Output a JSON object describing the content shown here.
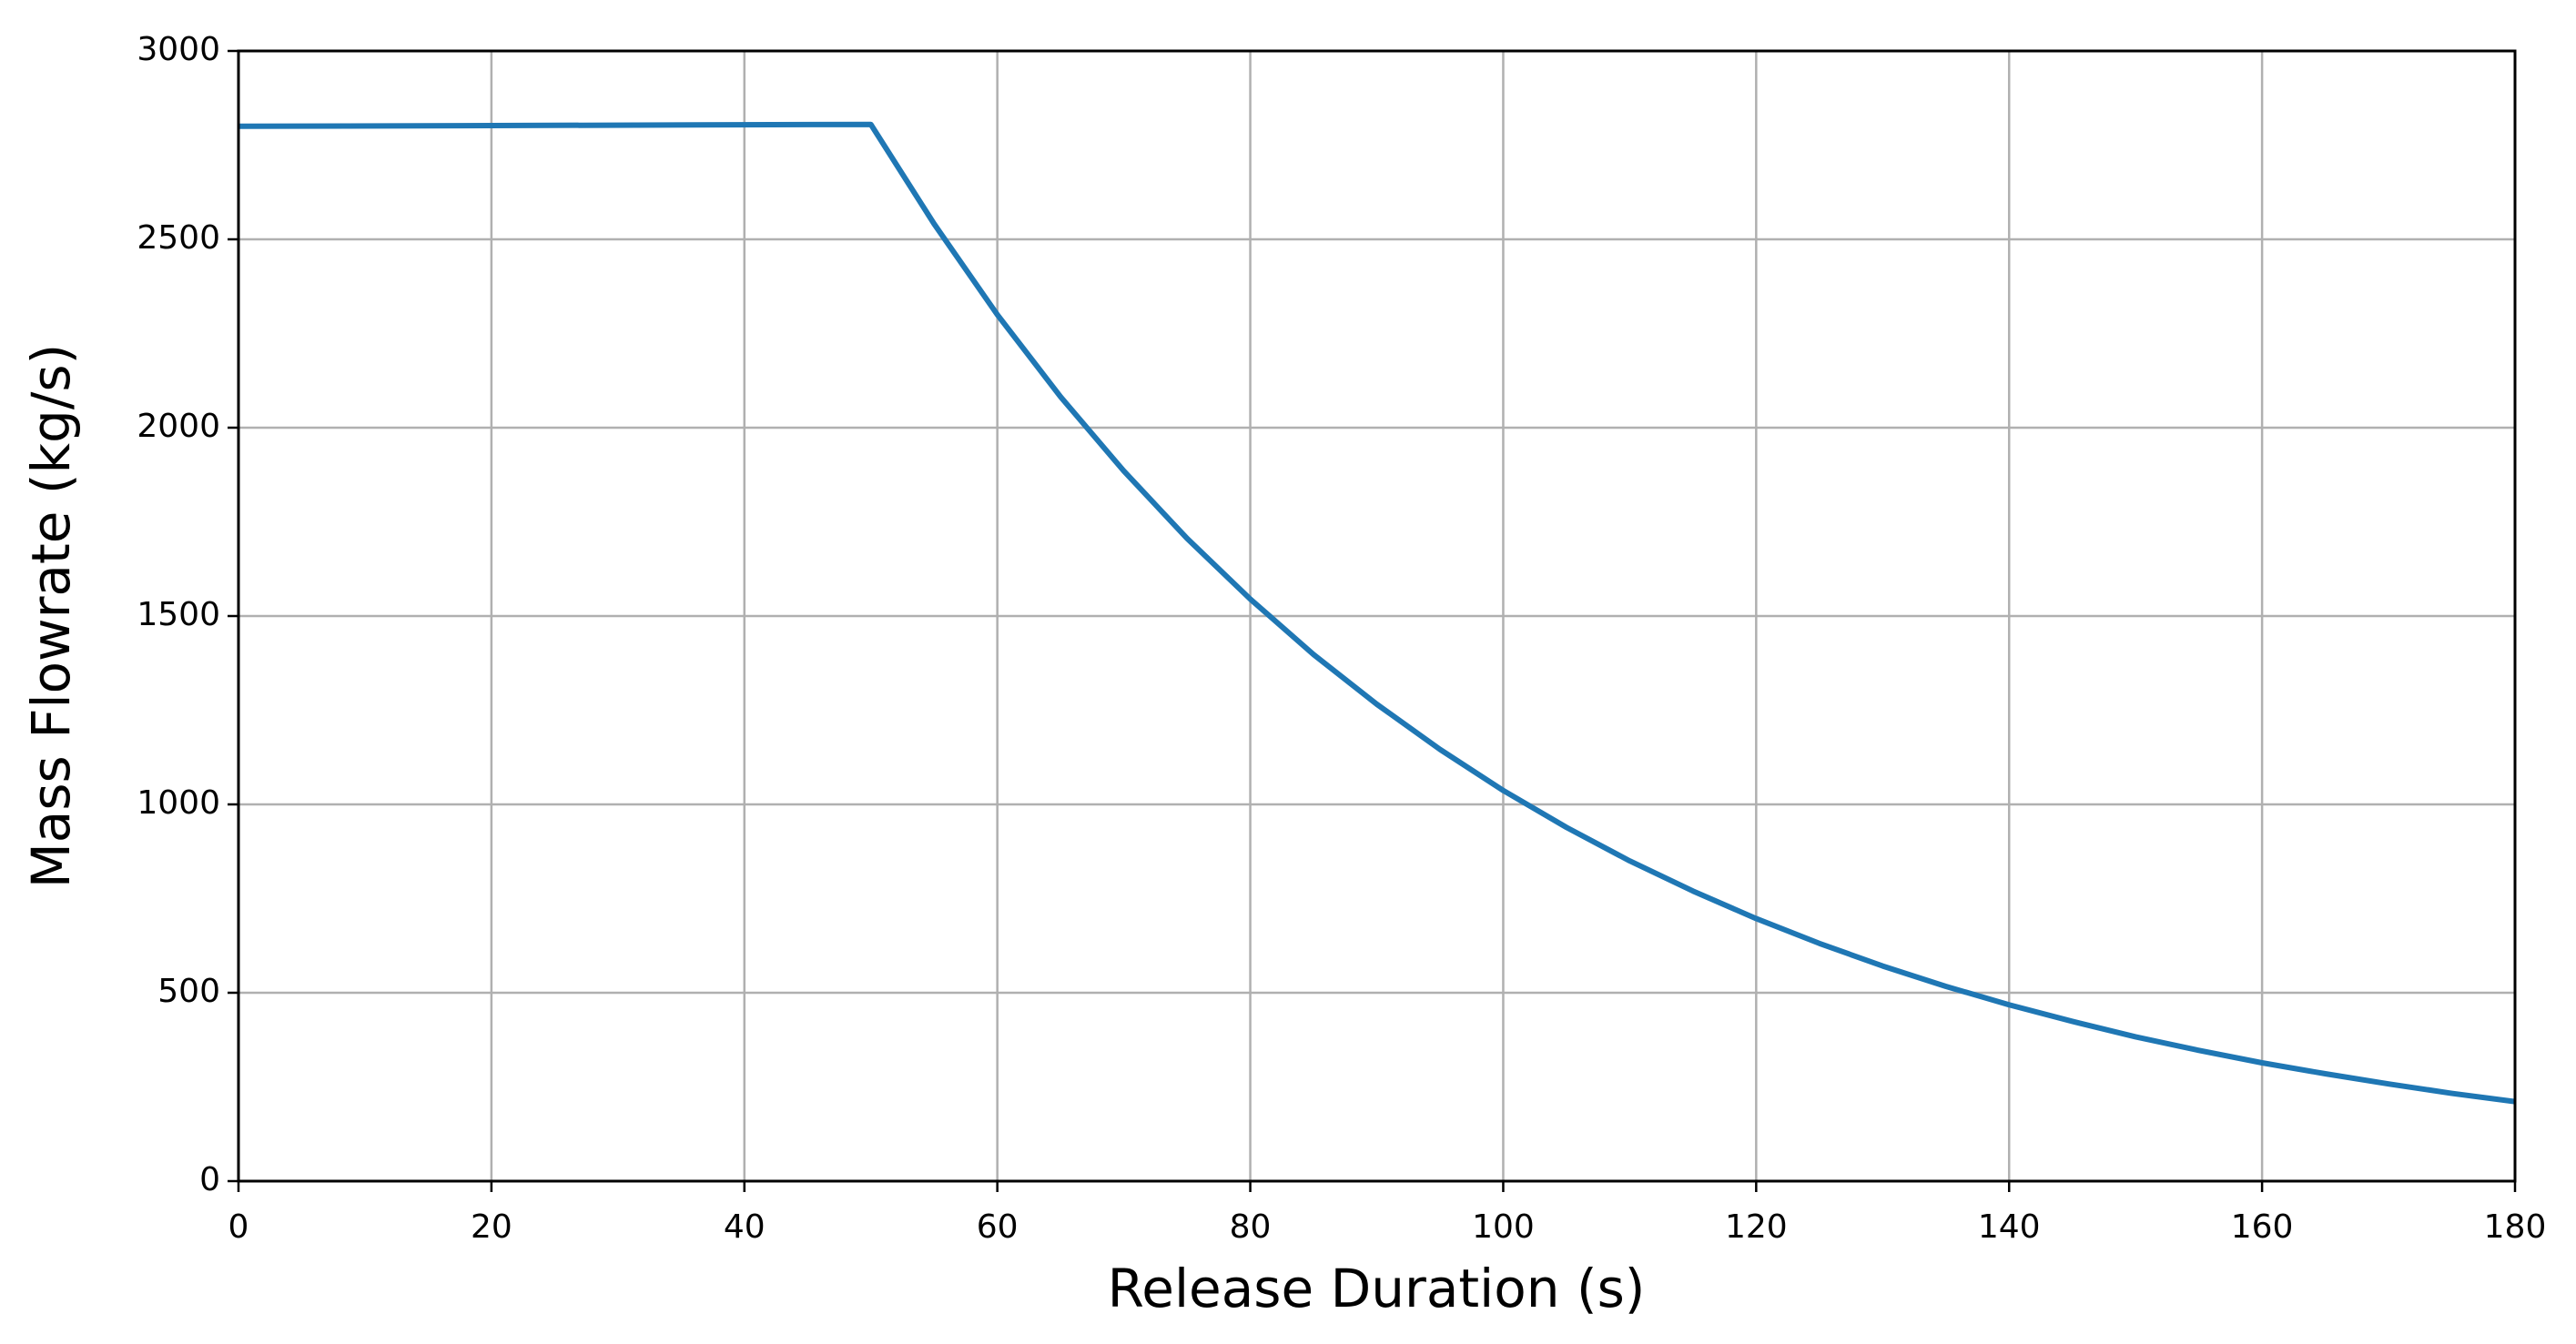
{
  "chart_data": {
    "type": "line",
    "x_label": "Release Duration (s)",
    "y_label": "Mass Flowrate (kg/s)",
    "x": [
      0,
      50,
      55,
      60,
      65,
      70,
      75,
      80,
      85,
      90,
      95,
      100,
      105,
      110,
      115,
      120,
      125,
      130,
      135,
      140,
      145,
      150,
      155,
      160,
      165,
      170,
      175,
      180
    ],
    "series": [
      {
        "name": "Mass Flowrate",
        "color": "#1f77b4",
        "values": [
          2800,
          2805,
          2541,
          2300,
          2082,
          1885,
          1706,
          1545,
          1398,
          1266,
          1146,
          1037,
          939,
          850,
          770,
          697,
          631,
          571,
          517,
          468,
          424,
          383,
          347,
          314,
          285,
          258,
          233,
          211
        ]
      }
    ],
    "xlim": [
      0,
      180
    ],
    "xticks": [
      0,
      20,
      40,
      60,
      80,
      100,
      120,
      140,
      160,
      180
    ],
    "ylim": [
      0,
      3000
    ],
    "yticks": [
      0,
      500,
      1000,
      1500,
      2000,
      2500,
      3000
    ],
    "grid": true
  }
}
